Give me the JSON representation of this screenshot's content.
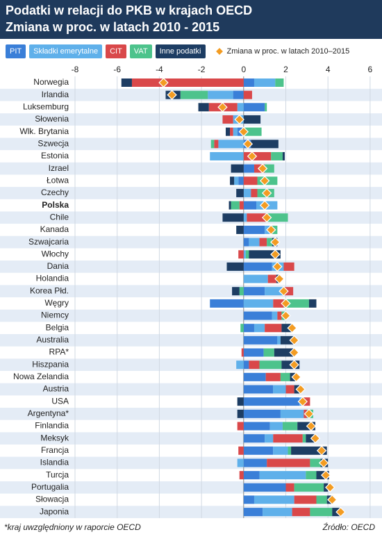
{
  "chart_data": {
    "type": "stacked-bar-horizontal",
    "title": "Podatki w relacji do PKB w krajach OECD",
    "subtitle": "Zmiana w proc. w latach 2010 - 2015",
    "categories": [
      "Norwegia",
      "Irlandia",
      "Luksemburg",
      "Słowenia",
      "Wlk. Brytania",
      "Szwecja",
      "Estonia",
      "Izrael",
      "Łotwa",
      "Czechy",
      "Polska",
      "Chile",
      "Kanada",
      "Szwajcaria",
      "Włochy",
      "Dania",
      "Holandia",
      "Korea Płd.",
      "Węgry",
      "Niemcy",
      "Belgia",
      "Australia",
      "RPA*",
      "Hiszpania",
      "Nowa Zelandia",
      "Austria",
      "USA",
      "Argentyna*",
      "Finlandia",
      "Meksyk",
      "Francja",
      "Islandia",
      "Turcja",
      "Portugalia",
      "Słowacja",
      "Japonia"
    ],
    "highlight_index": 10,
    "series": [
      {
        "name": "PIT",
        "color": "#3a7fd8",
        "values": [
          0.5,
          -0.5,
          1.0,
          0,
          -0.3,
          0.35,
          0,
          0.5,
          -0.25,
          0,
          0.6,
          0,
          1.0,
          0.25,
          0,
          1.35,
          0,
          1.0,
          -1.6,
          1.35,
          0.5,
          1.6,
          0.95,
          0.25,
          1.05,
          1.4,
          2.65,
          1.75,
          1.25,
          1.0,
          1.4,
          1.1,
          0.75,
          2.0,
          0.5,
          0.9
        ]
      },
      {
        "name": "Składki emerytalne",
        "color": "#5fb0ea",
        "values": [
          1.0,
          -1.2,
          -0.3,
          -0.5,
          -0.2,
          -1.2,
          -1.6,
          0,
          -0.2,
          0.35,
          1.0,
          0.15,
          0.3,
          0.5,
          0.1,
          0.55,
          1.15,
          0.9,
          1.4,
          0.25,
          0.5,
          0.15,
          0,
          -0.35,
          0,
          0.6,
          0.15,
          1.1,
          0.6,
          0.4,
          0.7,
          -0.3,
          2.2,
          0,
          1.9,
          1.4
        ]
      },
      {
        "name": "CIT",
        "color": "#d9484a",
        "values": [
          -5.3,
          0.4,
          -1.35,
          -0.5,
          -0.15,
          -0.2,
          1.3,
          0.5,
          0.65,
          0.3,
          -0.2,
          0.9,
          0,
          0.35,
          -0.25,
          0.5,
          0.4,
          0.45,
          0.5,
          0.2,
          0.8,
          0,
          -0.1,
          0.5,
          0.7,
          0.4,
          0.35,
          0.15,
          -0.3,
          1.4,
          -0.25,
          2.05,
          -0.2,
          0.4,
          1.05,
          0.85
        ]
      },
      {
        "name": "VAT",
        "color": "#4dc38c",
        "values": [
          0.4,
          -1.3,
          0.1,
          0,
          0.85,
          -0.15,
          0.55,
          0.45,
          0.95,
          0.8,
          -0.4,
          1.05,
          0.3,
          0.25,
          0.15,
          0,
          0,
          -0.2,
          1.2,
          0.25,
          -0.15,
          0,
          0.5,
          1.05,
          0.45,
          0,
          0,
          0.3,
          0.7,
          0.15,
          0.15,
          0.5,
          0.5,
          1.4,
          0.5,
          1.05
        ]
      },
      {
        "name": "Inne podatki",
        "color": "#1d3d63",
        "values": [
          -0.5,
          -0.7,
          -0.5,
          0.8,
          -0.2,
          1.3,
          0.1,
          -0.6,
          -0.2,
          -0.35,
          -0.1,
          -1.0,
          -0.35,
          0.25,
          1.5,
          -0.8,
          0.15,
          -0.35,
          0.35,
          0,
          0.5,
          0.6,
          0.9,
          0.85,
          0.25,
          0.25,
          -0.3,
          -0.3,
          0.85,
          0.4,
          1.7,
          0.35,
          0.6,
          0.2,
          0.3,
          0.4
        ]
      }
    ],
    "total": {
      "name": "Zmiana w proc. w latach 2010–2015",
      "color": "#f39c22",
      "values": [
        -3.8,
        -3.4,
        -1.0,
        -0.2,
        0.0,
        0.2,
        0.4,
        0.9,
        1.0,
        1.1,
        1.0,
        1.1,
        1.3,
        1.5,
        1.5,
        1.6,
        1.7,
        1.9,
        2.0,
        2.0,
        2.3,
        2.4,
        2.4,
        2.4,
        2.5,
        2.7,
        2.8,
        3.1,
        3.2,
        3.4,
        3.7,
        3.8,
        3.9,
        4.1,
        4.2,
        4.6
      ]
    },
    "xlim": [
      -8,
      6.3
    ],
    "xticks": [
      -8,
      -6,
      -4,
      -2,
      0,
      2,
      4,
      6
    ],
    "grid": true,
    "note": "*kraj uwzględniony w raporcie OECD",
    "source": "Źródło: OECD"
  }
}
